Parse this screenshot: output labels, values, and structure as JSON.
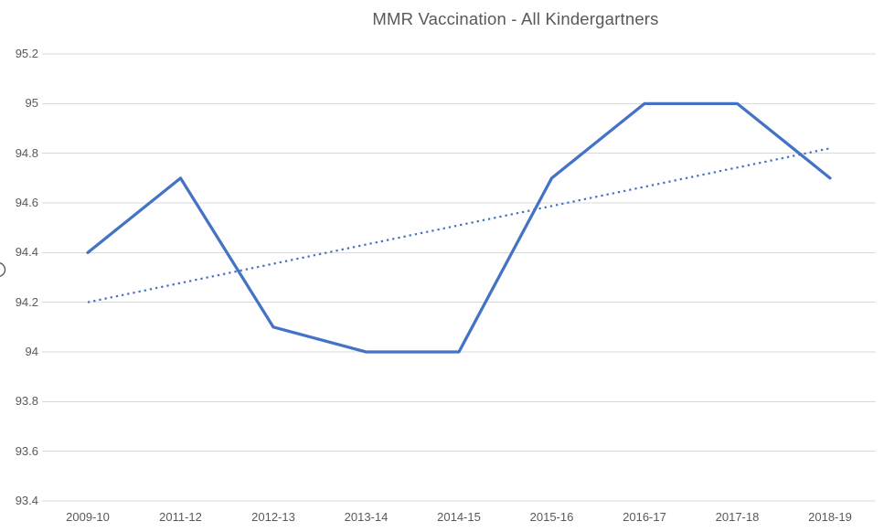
{
  "chart_data": {
    "type": "line",
    "title": "MMR Vaccination - All Kindergartners",
    "categories": [
      "2009-10",
      "2011-12",
      "2012-13",
      "2013-14",
      "2014-15",
      "2015-16",
      "2016-17",
      "2017-18",
      "2018-19"
    ],
    "series": [
      {
        "name": "mmr-vaccination-rate",
        "style": "solid",
        "color": "#4472C4",
        "values": [
          94.4,
          94.7,
          94.1,
          94.0,
          94.0,
          94.7,
          95.0,
          95.0,
          94.7
        ]
      }
    ],
    "trendline": {
      "name": "linear-trendline",
      "style": "dotted",
      "color": "#4472C4",
      "start_value": 94.2,
      "end_value": 94.82
    },
    "ylim": [
      93.4,
      95.2
    ],
    "ytick_labels": [
      "95.2",
      "95",
      "94.8",
      "94.6",
      "94.4",
      "94.2",
      "94",
      "93.8",
      "93.6",
      "93.4"
    ],
    "xlabel": "",
    "ylabel_clipped_glyph": "O",
    "grid": "horizontal",
    "legend": "none"
  },
  "colors": {
    "line": "#4472C4",
    "gridline": "#D9D9D9",
    "tick_text": "#595959",
    "title_text": "#595959",
    "background": "#ffffff"
  }
}
